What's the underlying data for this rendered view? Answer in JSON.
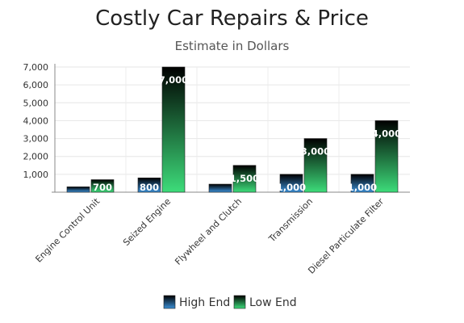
{
  "chart_data": {
    "type": "bar",
    "title": "Costly Car Repairs & Price",
    "subtitle": "Estimate in Dollars",
    "categories": [
      "Engine Control Unit",
      "Seized Engine",
      "Flywheel and Clutch",
      "Transmission",
      "Diesel Particulate Filter"
    ],
    "series": [
      {
        "name": "High End",
        "values": [
          300,
          800,
          450,
          1000,
          1000
        ],
        "color_top": "#000000",
        "color_bottom": "#3a8fd6"
      },
      {
        "name": "Low End",
        "values": [
          700,
          7000,
          1500,
          3000,
          4000
        ],
        "color_top": "#000000",
        "color_bottom": "#3ddc7a"
      }
    ],
    "data_labels": [
      [
        "",
        "800",
        "",
        "1,000",
        "1,000"
      ],
      [
        "700",
        "7,000",
        "1,500",
        "3,000",
        "4,000"
      ]
    ],
    "yticks": [
      "",
      "1,000",
      "2,000",
      "3,000",
      "4,000",
      "5,000",
      "6,000",
      "7,000"
    ],
    "ylim": [
      0,
      7000
    ],
    "grid": true,
    "legend_position": "bottom"
  }
}
